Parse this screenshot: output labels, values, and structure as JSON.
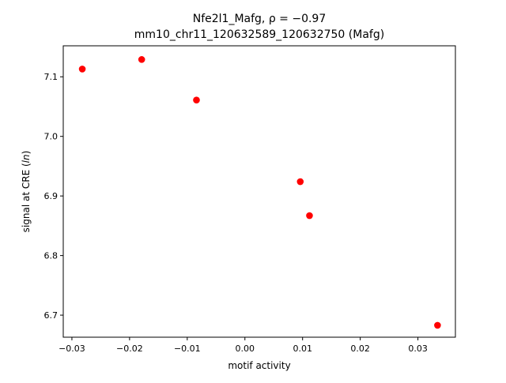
{
  "chart_data": {
    "type": "scatter",
    "title_line1": "Nfe2l1_Mafg, ρ = −0.97",
    "title_line2": "mm10_chr11_120632589_120632750 (Mafg)",
    "xlabel": "motif activity",
    "ylabel_prefix": "signal at CRE (",
    "ylabel_italic": "ln",
    "ylabel_suffix": ")",
    "xlim": [
      -0.0315,
      0.0365
    ],
    "ylim": [
      6.663,
      7.152
    ],
    "x_ticks": [
      -0.03,
      -0.02,
      -0.01,
      0.0,
      0.01,
      0.02,
      0.03
    ],
    "x_tick_labels": [
      "−0.03",
      "−0.02",
      "−0.01",
      "0.00",
      "0.01",
      "0.02",
      "0.03"
    ],
    "y_ticks": [
      6.7,
      6.8,
      6.9,
      7.0,
      7.1
    ],
    "y_tick_labels": [
      "6.7",
      "6.8",
      "6.9",
      "7.0",
      "7.1"
    ],
    "grid": false,
    "marker_color": "#ff0000",
    "points": [
      {
        "x": -0.0282,
        "y": 7.113
      },
      {
        "x": -0.0179,
        "y": 7.129
      },
      {
        "x": -0.0084,
        "y": 7.061
      },
      {
        "x": 0.0096,
        "y": 6.924
      },
      {
        "x": 0.0112,
        "y": 6.867
      },
      {
        "x": 0.0334,
        "y": 6.683
      }
    ]
  }
}
